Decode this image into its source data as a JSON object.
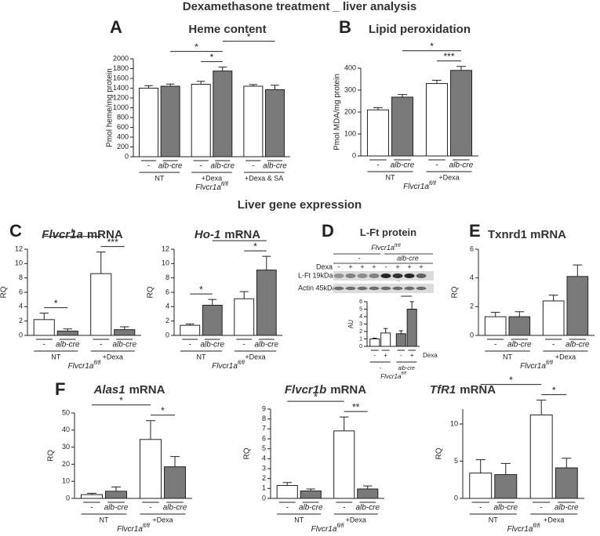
{
  "title": "Dexamethasone treatment _ liver analysis",
  "section_title": "Liver gene expression",
  "chart_data": [
    {
      "type": "bar",
      "panel": "A",
      "title": "Heme content",
      "ylabel": "Pmol heme/mg protein",
      "categories": [
        "-",
        "alb-cre",
        "-",
        "alb-cre",
        "-",
        "alb-cre"
      ],
      "groups": [
        "NT",
        "+Dexa",
        "+Dexa & SA"
      ],
      "genotype": "Flvcr1a",
      "genotype_sup": "fl/fl",
      "values": [
        1400,
        1440,
        1480,
        1750,
        1440,
        1370
      ],
      "errors": [
        50,
        45,
        60,
        80,
        35,
        90
      ],
      "colors": [
        "#ffffff",
        "#7a7a7a",
        "#ffffff",
        "#7a7a7a",
        "#ffffff",
        "#7a7a7a"
      ],
      "ylim": [
        0,
        2000
      ],
      "yticks": [
        0,
        200,
        400,
        600,
        800,
        1000,
        1200,
        1400,
        1600,
        1800,
        2000
      ],
      "significance": [
        {
          "bars": [
            2,
            3
          ],
          "label": "*"
        },
        {
          "bars": [
            1,
            3
          ],
          "label": "*"
        },
        {
          "bars": [
            3,
            5
          ],
          "label": "*"
        }
      ]
    },
    {
      "type": "bar",
      "panel": "B",
      "title": "Lipid peroxidation",
      "ylabel": "Pmol MDA/mg protein",
      "categories": [
        "-",
        "alb-cre",
        "-",
        "alb-cre"
      ],
      "groups": [
        "NT",
        "+Dexa"
      ],
      "genotype": "Flvcr1a",
      "genotype_sup": "fl/fl",
      "values": [
        210,
        268,
        330,
        390
      ],
      "errors": [
        10,
        12,
        15,
        18
      ],
      "colors": [
        "#ffffff",
        "#7a7a7a",
        "#ffffff",
        "#7a7a7a"
      ],
      "ylim": [
        0,
        400
      ],
      "yticks": [
        0,
        100,
        200,
        300,
        400
      ],
      "significance": [
        {
          "bars": [
            2,
            3
          ],
          "label": "***"
        },
        {
          "bars": [
            1,
            3
          ],
          "label": "*"
        }
      ]
    },
    {
      "type": "bar",
      "panel": "C",
      "title_gene": "Flvcr1a",
      "title": "mRNA",
      "ylabel": "RQ",
      "categories": [
        "-",
        "alb-cre",
        "-",
        "alb-cre"
      ],
      "groups": [
        "NT",
        "+Dexa"
      ],
      "genotype": "Flvcr1a",
      "genotype_sup": "fl/fl",
      "values": [
        2.2,
        0.6,
        8.6,
        0.8
      ],
      "errors": [
        0.9,
        0.3,
        3.0,
        0.4
      ],
      "colors": [
        "#ffffff",
        "#7a7a7a",
        "#ffffff",
        "#7a7a7a"
      ],
      "ylim": [
        0,
        12
      ],
      "yticks": [
        0,
        2,
        4,
        6,
        8,
        10,
        12
      ],
      "significance": [
        {
          "bars": [
            0,
            1
          ],
          "label": "*"
        },
        {
          "bars": [
            2,
            3
          ],
          "label": "***"
        },
        {
          "bars": [
            0,
            2
          ],
          "label": "*"
        }
      ]
    },
    {
      "type": "bar",
      "title_gene": "Ho-1",
      "title": "mRNA",
      "ylabel": "RQ",
      "categories": [
        "-",
        "alb-cre",
        "-",
        "alb-cre"
      ],
      "groups": [
        "NT",
        "+Dexa"
      ],
      "genotype": "Flvcr1a",
      "genotype_sup": "fl/fl",
      "values": [
        1.4,
        4.2,
        5.1,
        9.1
      ],
      "errors": [
        0.2,
        0.8,
        1.0,
        1.9
      ],
      "colors": [
        "#ffffff",
        "#7a7a7a",
        "#ffffff",
        "#7a7a7a"
      ],
      "ylim": [
        0,
        12
      ],
      "yticks": [
        0,
        2,
        4,
        6,
        8,
        10,
        12
      ],
      "significance": [
        {
          "bars": [
            0,
            1
          ],
          "label": "*"
        },
        {
          "bars": [
            2,
            3
          ],
          "label": "*"
        },
        {
          "bars": [
            1,
            3
          ],
          "label": "*"
        }
      ]
    },
    {
      "type": "bar",
      "panel": "D",
      "title": "L-Ft protein",
      "ylabel": "AU",
      "categories": [
        "-",
        "+",
        "-",
        "+"
      ],
      "groups": [
        "-",
        "alb-cre"
      ],
      "x_side_label": "Dexa",
      "genotype": "Flvcr1a",
      "genotype_sup": "fl/fl",
      "values": [
        1.0,
        1.8,
        1.7,
        5.0
      ],
      "errors": [
        0.1,
        0.6,
        0.4,
        1.0
      ],
      "colors": [
        "#ffffff",
        "#ffffff",
        "#7a7a7a",
        "#7a7a7a"
      ],
      "ylim": [
        0,
        6
      ],
      "yticks": [
        0,
        1,
        2,
        3,
        4,
        5,
        6
      ],
      "significance": [
        {
          "bars": [
            2,
            3
          ],
          "label": "*"
        },
        {
          "bars": [
            1,
            3
          ],
          "label": "*"
        }
      ],
      "blot": {
        "treatment_label": "Dexa",
        "signs": [
          "-",
          "+",
          "+",
          "+",
          "-",
          "+",
          "+",
          "+"
        ],
        "genotype": "Flvcr1a",
        "genotype_sup": "fl/fl",
        "groups": [
          "-",
          "alb-cre"
        ],
        "rows": [
          "L-Ft 19kDa",
          "Actin 45kDa"
        ]
      }
    },
    {
      "type": "bar",
      "panel": "E",
      "title": "Txnrd1  mRNA",
      "ylabel": "RQ",
      "categories": [
        "-",
        "alb-cre",
        "-",
        "alb-cre"
      ],
      "groups": [
        "NT",
        "+Dexa"
      ],
      "genotype": "Flvcr1a",
      "genotype_sup": "fl/fl",
      "values": [
        1.3,
        1.3,
        2.4,
        4.1
      ],
      "errors": [
        0.3,
        0.35,
        0.4,
        0.8
      ],
      "colors": [
        "#ffffff",
        "#7a7a7a",
        "#ffffff",
        "#7a7a7a"
      ],
      "ylim": [
        0,
        6
      ],
      "yticks": [
        0,
        2,
        4,
        6
      ],
      "significance": []
    },
    {
      "type": "bar",
      "panel": "F",
      "title_gene": "Alas1",
      "title": "mRNA",
      "ylabel": "RQ",
      "categories": [
        "-",
        "alb-cre",
        "-",
        "alb-cre"
      ],
      "groups": [
        "NT",
        "+Dexa"
      ],
      "genotype": "Flvcr1a",
      "genotype_sup": "fl/fl",
      "values": [
        2.2,
        4.2,
        34.5,
        18.5
      ],
      "errors": [
        0.8,
        2.5,
        11,
        6
      ],
      "colors": [
        "#ffffff",
        "#7a7a7a",
        "#ffffff",
        "#7a7a7a"
      ],
      "ylim": [
        0,
        50
      ],
      "yticks": [
        0,
        10,
        20,
        30,
        40,
        50
      ],
      "significance": [
        {
          "bars": [
            2,
            3
          ],
          "label": "*"
        },
        {
          "bars": [
            0,
            2
          ],
          "label": "*"
        }
      ]
    },
    {
      "type": "bar",
      "title_gene": "Flvcr1b",
      "title": "mRNA",
      "ylabel": "RQ",
      "categories": [
        "-",
        "alb-cre",
        "-",
        "alb-cre"
      ],
      "groups": [
        "NT",
        "+Dexa"
      ],
      "genotype": "Flvcr1a",
      "genotype_sup": "fl/fl",
      "values": [
        1.3,
        0.75,
        6.8,
        0.95
      ],
      "errors": [
        0.3,
        0.2,
        1.4,
        0.3
      ],
      "colors": [
        "#ffffff",
        "#7a7a7a",
        "#ffffff",
        "#7a7a7a"
      ],
      "ylim": [
        0,
        9
      ],
      "yticks": [
        0,
        1,
        2,
        3,
        4,
        5,
        6,
        7,
        8,
        9
      ],
      "significance": [
        {
          "bars": [
            2,
            3
          ],
          "label": "**"
        },
        {
          "bars": [
            0,
            2
          ],
          "label": "*"
        }
      ]
    },
    {
      "type": "bar",
      "title_gene": "TfR1",
      "title": "mRNA",
      "ylabel": "RQ",
      "categories": [
        "-",
        "alb-cre",
        "-",
        "alb-cre"
      ],
      "groups": [
        "NT",
        "+Dexa"
      ],
      "genotype": "Flvcr1a",
      "genotype_sup": "fl/fl",
      "values": [
        3.4,
        3.2,
        11.2,
        4.1
      ],
      "errors": [
        1.8,
        1.5,
        2.0,
        1.3
      ],
      "colors": [
        "#ffffff",
        "#7a7a7a",
        "#ffffff",
        "#7a7a7a"
      ],
      "ylim": [
        0,
        12
      ],
      "yticks": [
        0,
        5,
        10
      ],
      "significance": [
        {
          "bars": [
            2,
            3
          ],
          "label": "*"
        },
        {
          "bars": [
            0,
            2
          ],
          "label": "*"
        }
      ]
    }
  ]
}
